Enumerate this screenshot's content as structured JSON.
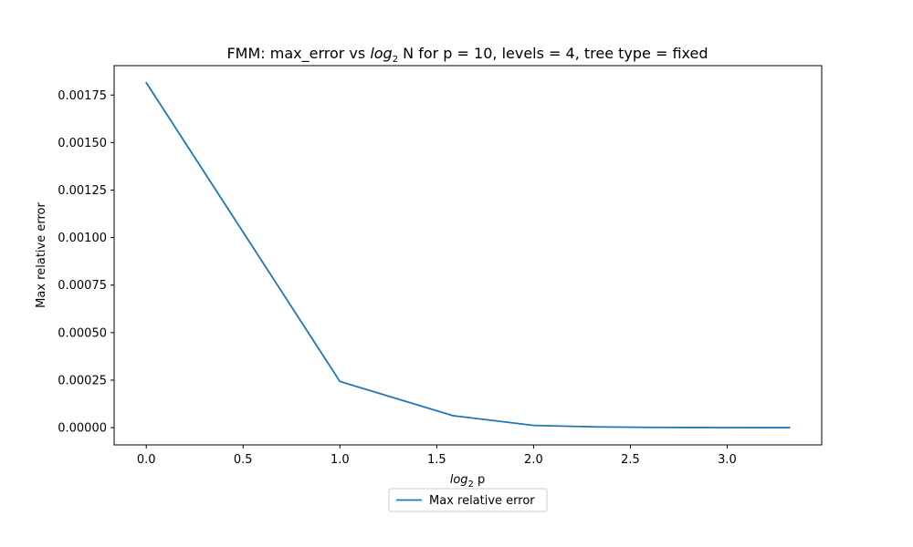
{
  "chart_data": {
    "type": "line",
    "title": {
      "prefix": "FMM: max_error vs ",
      "log": "log",
      "base": "2",
      "suffix": " N for p = 10, levels = 4, tree type = fixed"
    },
    "xlabel": {
      "log": "log",
      "base": "2",
      "suffix": " p"
    },
    "ylabel": "Max relative error",
    "xlim": [
      -0.166,
      3.488
    ],
    "ylim": [
      -9.07e-05,
      0.0019047
    ],
    "xticks": [
      0.0,
      0.5,
      1.0,
      1.5,
      2.0,
      2.5,
      3.0
    ],
    "xtick_labels": [
      "0.0",
      "0.5",
      "1.0",
      "1.5",
      "2.0",
      "2.5",
      "3.0"
    ],
    "yticks": [
      0.0,
      0.00025,
      0.0005,
      0.00075,
      0.001,
      0.00125,
      0.0015,
      0.00175
    ],
    "ytick_labels": [
      "0.00000",
      "0.00025",
      "0.00050",
      "0.00075",
      "0.00100",
      "0.00125",
      "0.00150",
      "0.00175"
    ],
    "grid": false,
    "legend_position": "bottom-center",
    "series": [
      {
        "name": "Max relative error",
        "color": "#1f77b4",
        "x": [
          0.0,
          1.0,
          1.585,
          2.0,
          2.322,
          2.585,
          2.807,
          3.0,
          3.17,
          3.322
        ],
        "y": [
          0.001815,
          0.000243,
          6.3e-05,
          1.2e-05,
          4e-06,
          1.5e-06,
          7e-07,
          3e-07,
          2e-07,
          1e-07
        ]
      }
    ]
  }
}
